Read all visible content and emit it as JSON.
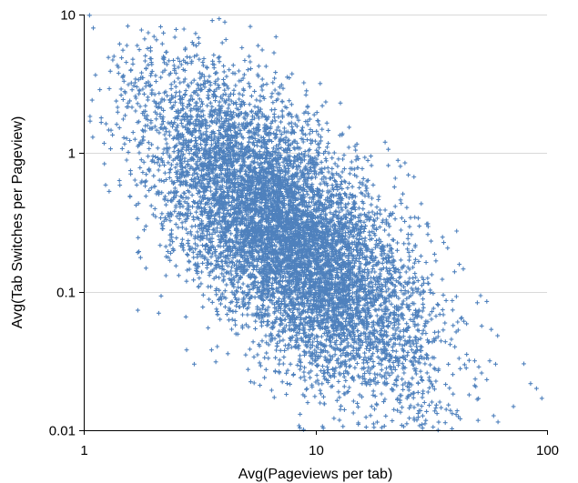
{
  "colors": {
    "background": "#ffffff",
    "gridline": "#d9d9d9",
    "axis": "#000000",
    "marker": "#4f81bd"
  },
  "chart_data": {
    "type": "scatter",
    "title": "",
    "xlabel": "Avg(Pageviews per tab)",
    "ylabel": "Avg(Tab Switches per Pageview)",
    "x_scale": "log",
    "y_scale": "log",
    "xlim": [
      1,
      100
    ],
    "ylim": [
      0.01,
      10
    ],
    "x_ticks": [
      1,
      10,
      100
    ],
    "x_tick_labels": [
      "1",
      "10",
      "100"
    ],
    "y_ticks": [
      0.01,
      0.1,
      1,
      10
    ],
    "y_tick_labels": [
      "0.01",
      "0.1",
      "1",
      "10"
    ],
    "grid": "horizontal",
    "legend": "none",
    "marker": "plus",
    "series": [
      {
        "points_approx_count": 8000,
        "distribution": {
          "trend": "negative log-log correlation",
          "approx_slope_log_log": -1.25,
          "center_log10_x": 0.88,
          "center_log10_y": -0.6,
          "spread_log10_x": 0.28,
          "spread_log10_y": 0.42
        },
        "sample_points": [
          [
            1.1,
            8.0
          ],
          [
            1.35,
            5.0
          ],
          [
            1.8,
            3.5
          ],
          [
            2.5,
            2.0
          ],
          [
            3.0,
            1.5
          ],
          [
            4.0,
            1.0
          ],
          [
            5.0,
            0.7
          ],
          [
            6.0,
            0.5
          ],
          [
            8.0,
            0.3
          ],
          [
            10.0,
            0.2
          ],
          [
            12.0,
            0.15
          ],
          [
            15.0,
            0.1
          ],
          [
            20.0,
            0.07
          ],
          [
            30.0,
            0.05
          ],
          [
            40.0,
            0.04
          ],
          [
            60.0,
            0.03
          ],
          [
            90.0,
            0.02
          ],
          [
            95.0,
            0.017
          ],
          [
            3.0,
            0.03
          ],
          [
            20.0,
            1.2
          ]
        ]
      }
    ]
  }
}
